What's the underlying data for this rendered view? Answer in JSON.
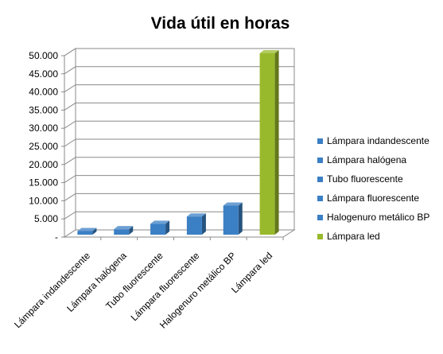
{
  "chart_data": {
    "type": "bar",
    "title": "Vida útil en horas",
    "categories": [
      "Lámpara indandescente",
      "Lámpara halógena",
      "Tubo fluorescente",
      "Lámpara fluorescente",
      "Halogenuro metálico BP",
      "Lámpara led"
    ],
    "values": [
      1000,
      1500,
      3000,
      5000,
      8000,
      50000
    ],
    "colors": [
      "#3B7FC4",
      "#3B7FC4",
      "#3B7FC4",
      "#3B7FC4",
      "#3B7FC4",
      "#98B92B"
    ],
    "ylim": [
      0,
      50000
    ],
    "yticks": [
      0,
      5000,
      10000,
      15000,
      20000,
      25000,
      30000,
      35000,
      40000,
      45000,
      50000
    ],
    "ytick_labels": [
      "-",
      "5.000",
      "10.000",
      "15.000",
      "20.000",
      "25.000",
      "30.000",
      "35.000",
      "40.000",
      "45.000",
      "50.000"
    ],
    "legend": {
      "position": "right",
      "entries": [
        "Lámpara indandescente",
        "Lámpara halógena",
        "Tubo fluorescente",
        "Lámpara fluorescente",
        "Halogenuro metálico BP",
        "Lámpara led"
      ]
    },
    "grid": true,
    "style": "3d-column"
  }
}
